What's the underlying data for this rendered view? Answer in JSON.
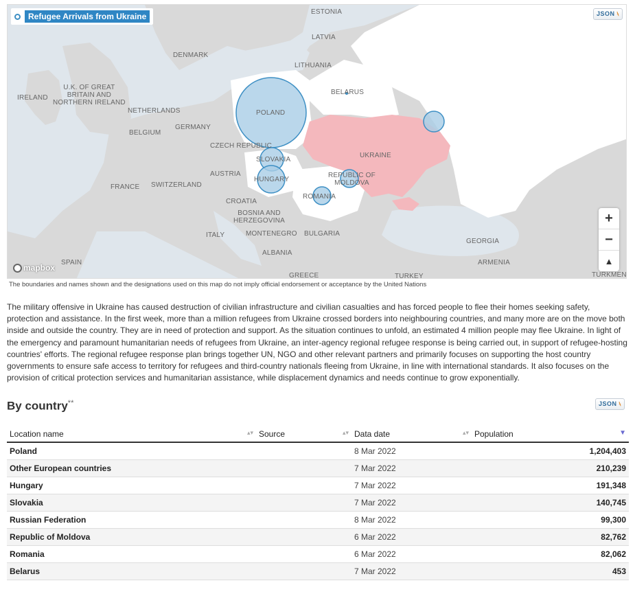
{
  "map": {
    "title": "Refugee Arrivals from Ukraine",
    "json_label": "JSON",
    "attribution": "mapbox",
    "zoom_in": "+",
    "zoom_out": "−",
    "compass": "▲",
    "labels": {
      "estonia": "ESTONIA",
      "latvia": "LATVIA",
      "lithuania": "LITHUANIA",
      "denmark": "DENMARK",
      "uk": "U.K. OF GREAT\nBRITAIN AND\nNORTHERN IRELAND",
      "ireland": "IRELAND",
      "netherlands": "NETHERLANDS",
      "belgium": "BELGIUM",
      "germany": "GERMANY",
      "poland": "POLAND",
      "belarus": "BELARUS",
      "czech": "CZECH REPUBLIC",
      "slovakia": "SLOVAKIA",
      "ukraine": "UKRAINE",
      "austria": "AUSTRIA",
      "hungary": "HUNGARY",
      "moldova": "REPUBLIC OF\nMOLDOVA",
      "france": "FRANCE",
      "switzerland": "SWITZERLAND",
      "croatia": "CROATIA",
      "romania": "ROMANIA",
      "bosnia": "BOSNIA AND\nHERZEGOVINA",
      "italy": "ITALY",
      "montenegro": "MONTENEGRO",
      "bulgaria": "BULGARIA",
      "albania": "ALBANIA",
      "georgia": "GEORGIA",
      "armenia": "ARMENIA",
      "greece": "GREECE",
      "turkey": "TURKEY",
      "turkmen": "TURKMEN",
      "spain": "SPAIN"
    }
  },
  "disclaimer": "The boundaries and names shown and the designations used on this map do not imply official endorsement or acceptance by the United Nations",
  "intro": "The military offensive in Ukraine has caused destruction of civilian infrastructure and civilian casualties and has forced people to flee their homes seeking safety, protection and assistance. In the first week, more than a million refugees from Ukraine crossed borders into neighbouring countries, and many more are on the move both inside and outside the country. They are in need of protection and support. As the situation continues to unfold, an estimated 4 million people may flee Ukraine. In light of the emergency and paramount humanitarian needs of refugees from Ukraine, an inter-agency regional refugee response is being carried out, in support of refugee-hosting countries' efforts. The regional refugee response plan brings together UN, NGO and other relevant partners and primarily focuses on supporting the host country governments to ensure safe access to territory for refugees and third-country nationals fleeing from Ukraine, in line with international standards. It also focuses on the provision of critical protection services and humanitarian assistance, while displacement dynamics and needs continue to grow exponentially.",
  "by_country": {
    "title": "By country",
    "title_mark": "**",
    "json_label": "JSON",
    "columns": [
      "Location name",
      "Source",
      "Data date",
      "Population"
    ],
    "rows": [
      {
        "location": "Poland",
        "source": "",
        "date": "8 Mar 2022",
        "population": "1,204,403"
      },
      {
        "location": "Other European countries",
        "source": "",
        "date": "7 Mar 2022",
        "population": "210,239"
      },
      {
        "location": "Hungary",
        "source": "",
        "date": "7 Mar 2022",
        "population": "191,348"
      },
      {
        "location": "Slovakia",
        "source": "",
        "date": "7 Mar 2022",
        "population": "140,745"
      },
      {
        "location": "Russian Federation",
        "source": "",
        "date": "8 Mar 2022",
        "population": "99,300"
      },
      {
        "location": "Republic of Moldova",
        "source": "",
        "date": "6 Mar 2022",
        "population": "82,762"
      },
      {
        "location": "Romania",
        "source": "",
        "date": "6 Mar 2022",
        "population": "82,062"
      },
      {
        "location": "Belarus",
        "source": "",
        "date": "7 Mar 2022",
        "population": "453"
      }
    ]
  },
  "colors": {
    "ukraine_fill": "#f4b8bd",
    "bubble_fill": "#a9cde6",
    "bubble_stroke": "#3d8fc4",
    "land": "#d9d9d9",
    "neighbors": "#ffffff",
    "sea": "#dfe6ec"
  }
}
